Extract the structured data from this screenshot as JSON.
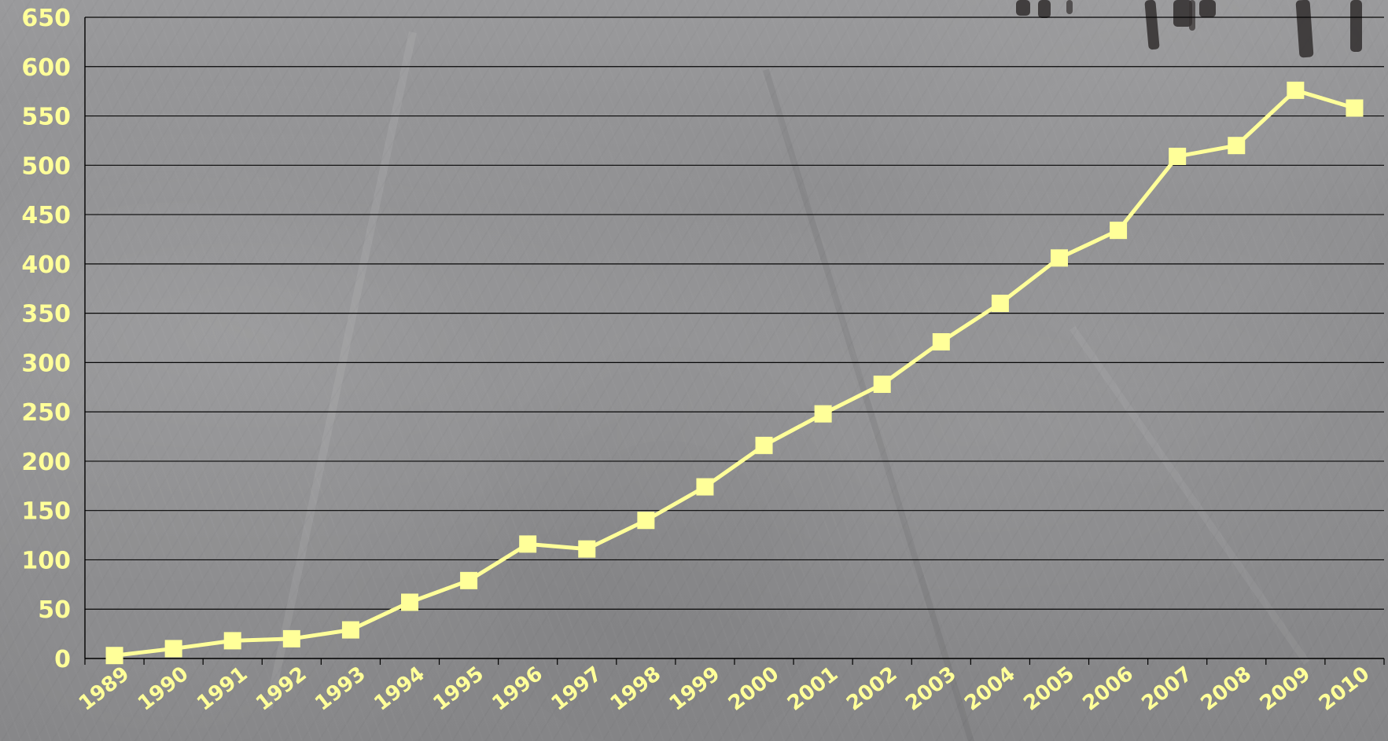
{
  "chart_data": {
    "type": "line",
    "categories": [
      "1989",
      "1990",
      "1991",
      "1992",
      "1993",
      "1994",
      "1995",
      "1996",
      "1997",
      "1998",
      "1999",
      "2000",
      "2001",
      "2002",
      "2003",
      "2004",
      "2005",
      "2006",
      "2007",
      "2008",
      "2009",
      "2010"
    ],
    "values": [
      3,
      10,
      18,
      20,
      29,
      57,
      79,
      116,
      111,
      140,
      174,
      216,
      248,
      278,
      321,
      360,
      406,
      434,
      509,
      520,
      576,
      558
    ],
    "title": "",
    "xlabel": "",
    "ylabel": "",
    "ylim": [
      0,
      650
    ],
    "yticks": [
      "0",
      "50",
      "100",
      "150",
      "200",
      "250",
      "300",
      "350",
      "400",
      "450",
      "500",
      "550",
      "600",
      "650"
    ],
    "grid": true,
    "legend": "none",
    "colors": {
      "line": "#ffff99",
      "marker": "#ffff99",
      "text": "#ffff99",
      "grid": "#000000",
      "background": "#8d8d8f"
    },
    "marker": "square-icon"
  }
}
